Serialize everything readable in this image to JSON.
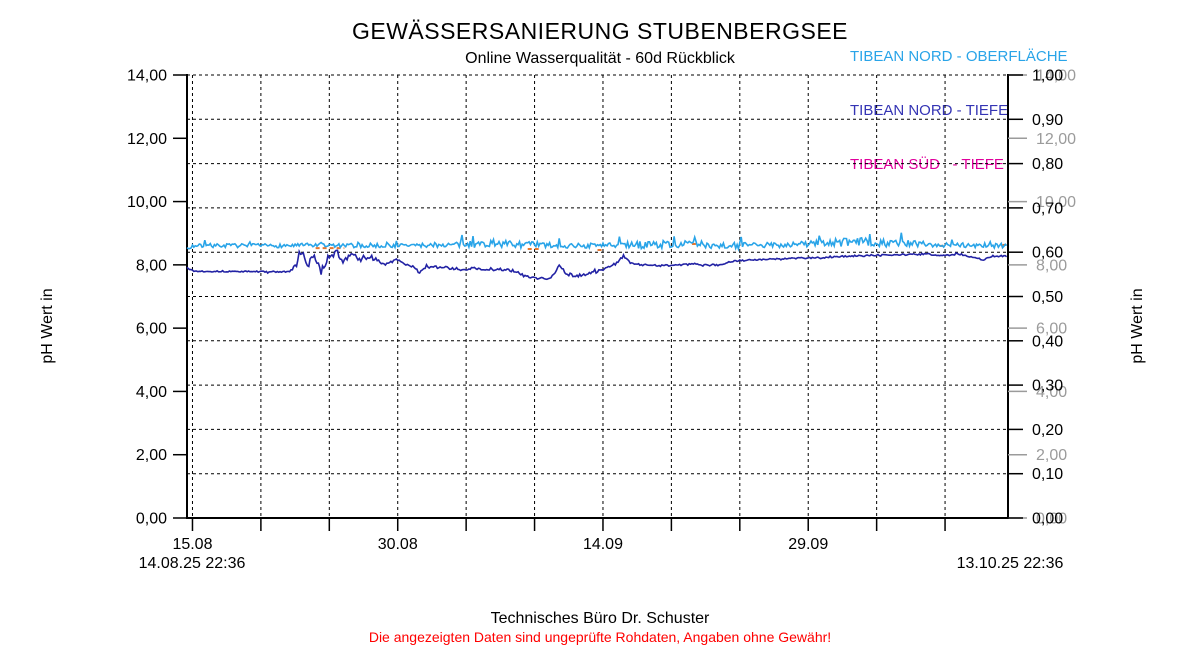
{
  "header": {
    "title": "GEWÄSSERSANIERUNG STUBENBERGSEE",
    "subtitle": "Online Wasserqualität - 60d Rückblick"
  },
  "legend": {
    "items": [
      {
        "label": "TIBEAN NORD - OBERFLÄCHE",
        "color": "#29a4e8"
      },
      {
        "label": "TIBEAN NORD - TIEFE",
        "color": "#3434b4"
      },
      {
        "label": "TIBEAN SÜD   - TIEFE",
        "color": "#e0009c"
      }
    ]
  },
  "footer": {
    "line1": "Technisches Büro Dr. Schuster",
    "line2": "Die angezeigten Daten sind ungeprüfte Rohdaten, Angaben ohne Gewähr!"
  },
  "chart_data": {
    "type": "line",
    "title": "GEWÄSSERSANIERUNG STUBENBERGSEE",
    "subtitle": "Online Wasserqualität - 60d Rückblick",
    "x_axis": {
      "start_label": "14.08.25 22:36",
      "end_label": "13.10.25 22:36",
      "days_total": 60,
      "first_tick_day": 0.4,
      "tick_step_days": 5,
      "ticks_count": 12,
      "label_every": 3,
      "tick_labels": [
        "15.08",
        "30.08",
        "14.09",
        "29.09"
      ],
      "grid": true
    },
    "y_left": {
      "title": "pH Wert in",
      "min": 0,
      "max": 14,
      "step": 2,
      "tick_labels": [
        "0,00",
        "2,00",
        "4,00",
        "6,00",
        "8,00",
        "10,00",
        "12,00",
        "14,00"
      ],
      "color": "#000000"
    },
    "y_right_black": {
      "min": 0,
      "max": 1,
      "step": 0.1,
      "tick_labels": [
        "0,00",
        "0,10",
        "0,20",
        "0,30",
        "0,40",
        "0,50",
        "0,60",
        "0,70",
        "0,80",
        "0,90",
        "1,00"
      ],
      "color": "#000000",
      "grid": true
    },
    "y_right_gray": {
      "title": "pH Wert in",
      "min": 0,
      "max": 14,
      "step": 2,
      "tick_labels": [
        "0,00",
        "2,00",
        "4,00",
        "6,00",
        "8,00",
        "10,00",
        "12,00",
        "14,00"
      ],
      "color": "#9b9b9b"
    },
    "series": [
      {
        "name": "TIBEAN NORD - OBERFLÄCHE",
        "color": "#29a4e8",
        "seed": 7,
        "spike": {
          "prob": 0.08,
          "mult": 2.6,
          "sign": 1
        },
        "trend": [
          [
            0,
            8.45
          ],
          [
            0.4,
            8.6
          ],
          [
            3,
            8.61
          ],
          [
            6,
            8.6
          ],
          [
            9,
            8.62
          ],
          [
            12,
            8.6
          ],
          [
            15,
            8.61
          ],
          [
            18,
            8.62
          ],
          [
            20,
            8.64
          ],
          [
            22,
            8.67
          ],
          [
            24,
            8.65
          ],
          [
            26,
            8.62
          ],
          [
            28,
            8.6
          ],
          [
            30,
            8.61
          ],
          [
            32,
            8.62
          ],
          [
            34,
            8.64
          ],
          [
            36,
            8.66
          ],
          [
            38,
            8.64
          ],
          [
            40,
            8.61
          ],
          [
            42,
            8.62
          ],
          [
            44,
            8.64
          ],
          [
            46,
            8.68
          ],
          [
            48,
            8.71
          ],
          [
            50,
            8.72
          ],
          [
            52,
            8.68
          ],
          [
            54,
            8.65
          ],
          [
            56,
            8.63
          ],
          [
            58,
            8.62
          ],
          [
            60,
            8.61
          ]
        ],
        "noise": [
          [
            0,
            0.06
          ],
          [
            19,
            0.07
          ],
          [
            20,
            0.11
          ],
          [
            26,
            0.11
          ],
          [
            27,
            0.08
          ],
          [
            32,
            0.08
          ],
          [
            33,
            0.12
          ],
          [
            40,
            0.12
          ],
          [
            41,
            0.08
          ],
          [
            45,
            0.09
          ],
          [
            46,
            0.13
          ],
          [
            53,
            0.13
          ],
          [
            54,
            0.08
          ],
          [
            60,
            0.08
          ]
        ]
      },
      {
        "name": "TIBEAN NORD - TIEFE",
        "color": "#2222a4",
        "seed": 13,
        "spike": {
          "prob": 0.04,
          "mult": 1.8,
          "sign": 0
        },
        "trend": [
          [
            0,
            7.92
          ],
          [
            0.5,
            7.8
          ],
          [
            7.5,
            7.78
          ],
          [
            8,
            8.02
          ],
          [
            8.4,
            8.42
          ],
          [
            8.8,
            7.95
          ],
          [
            9.3,
            8.32
          ],
          [
            9.8,
            7.72
          ],
          [
            10.3,
            8.28
          ],
          [
            11,
            8.38
          ],
          [
            11.5,
            8.08
          ],
          [
            12,
            8.32
          ],
          [
            12.6,
            8.18
          ],
          [
            13.4,
            8.24
          ],
          [
            14.4,
            8.04
          ],
          [
            15.4,
            8.14
          ],
          [
            16.4,
            7.95
          ],
          [
            17,
            7.78
          ],
          [
            17.6,
            7.95
          ],
          [
            19,
            7.9
          ],
          [
            20,
            7.86
          ],
          [
            21,
            7.9
          ],
          [
            22,
            7.82
          ],
          [
            23,
            7.86
          ],
          [
            24,
            7.8
          ],
          [
            24.8,
            7.62
          ],
          [
            25.6,
            7.56
          ],
          [
            26.6,
            7.58
          ],
          [
            27.2,
            7.98
          ],
          [
            27.8,
            7.7
          ],
          [
            28.6,
            7.64
          ],
          [
            29.6,
            7.74
          ],
          [
            30.6,
            7.88
          ],
          [
            31.4,
            8.05
          ],
          [
            31.9,
            8.28
          ],
          [
            32.4,
            8.05
          ],
          [
            33.2,
            8.0
          ],
          [
            34.5,
            7.98
          ],
          [
            36,
            8.0
          ],
          [
            37,
            8.03
          ],
          [
            38,
            8.0
          ],
          [
            39,
            7.98
          ],
          [
            39.6,
            8.08
          ],
          [
            40.5,
            8.14
          ],
          [
            42,
            8.17
          ],
          [
            44,
            8.2
          ],
          [
            46,
            8.22
          ],
          [
            48,
            8.27
          ],
          [
            50,
            8.3
          ],
          [
            52,
            8.32
          ],
          [
            54,
            8.34
          ],
          [
            55.5,
            8.3
          ],
          [
            56.5,
            8.35
          ],
          [
            57.5,
            8.22
          ],
          [
            58.2,
            8.16
          ],
          [
            58.8,
            8.28
          ],
          [
            60,
            8.27
          ]
        ],
        "noise": [
          [
            0,
            0.02
          ],
          [
            7.5,
            0.02
          ],
          [
            8,
            0.1
          ],
          [
            13,
            0.1
          ],
          [
            14,
            0.06
          ],
          [
            18,
            0.05
          ],
          [
            23,
            0.04
          ],
          [
            30,
            0.05
          ],
          [
            31,
            0.04
          ],
          [
            33,
            0.03
          ],
          [
            39,
            0.03
          ],
          [
            40,
            0.025
          ],
          [
            60,
            0.025
          ]
        ]
      },
      {
        "name": "TIBEAN SÜD - TIEFE",
        "color": "#e0009c",
        "seed": 1,
        "spike": {
          "prob": 0,
          "mult": 0,
          "sign": 0
        },
        "trend": [],
        "noise": []
      }
    ],
    "artifact_segments": {
      "color": "#e8762c",
      "segments": [
        [
          9.4,
          11.5,
          8.53
        ],
        [
          24.9,
          25.7,
          8.5
        ],
        [
          30.0,
          30.4,
          8.47
        ],
        [
          36.9,
          37.2,
          8.66
        ],
        [
          55.0,
          55.3,
          8.6
        ],
        [
          59.6,
          60,
          8.63
        ]
      ]
    }
  }
}
